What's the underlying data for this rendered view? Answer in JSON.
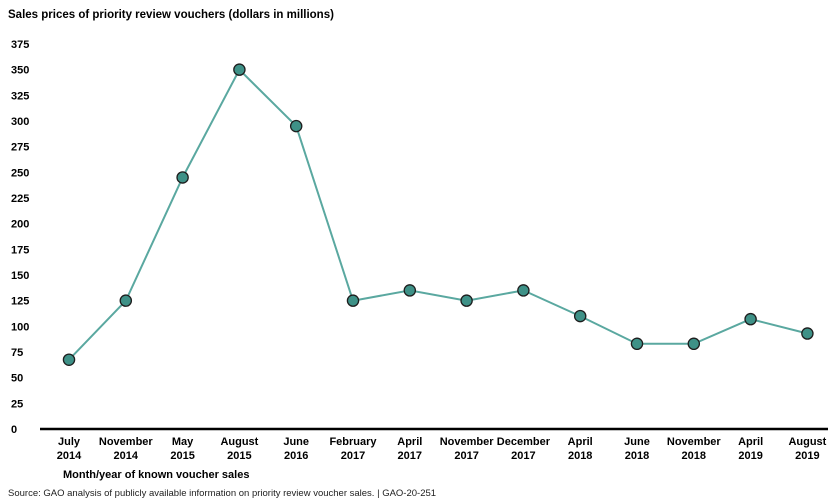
{
  "chart_data": {
    "type": "line",
    "title": "Sales prices of priority review vouchers (dollars in millions)",
    "xlabel": "Month/year of known voucher sales",
    "ylabel": "",
    "ylim": [
      0,
      375
    ],
    "yticks": [
      0,
      25,
      50,
      75,
      100,
      125,
      150,
      175,
      200,
      225,
      250,
      275,
      300,
      325,
      350,
      375
    ],
    "grid": false,
    "colors": {
      "line": "#5aa8a0",
      "marker_fill": "#3e9187",
      "marker_stroke": "#1e1e1e",
      "axis": "#000000"
    },
    "categories": [
      [
        "July",
        "2014"
      ],
      [
        "November",
        "2014"
      ],
      [
        "May",
        "2015"
      ],
      [
        "August",
        "2015"
      ],
      [
        "June",
        "2016"
      ],
      [
        "February",
        "2017"
      ],
      [
        "April",
        "2017"
      ],
      [
        "November",
        "2017"
      ],
      [
        "December",
        "2017"
      ],
      [
        "April",
        "2018"
      ],
      [
        "June",
        "2018"
      ],
      [
        "November",
        "2018"
      ],
      [
        "April",
        "2019"
      ],
      [
        "August",
        "2019"
      ]
    ],
    "series": [
      {
        "values": [
          67.5,
          125,
          245,
          350,
          295,
          125,
          135,
          125,
          135,
          110,
          83,
          83,
          107,
          93
        ]
      }
    ]
  },
  "source": "Source: GAO analysis of publicly available information on priority review voucher sales.  |  GAO-20-251"
}
